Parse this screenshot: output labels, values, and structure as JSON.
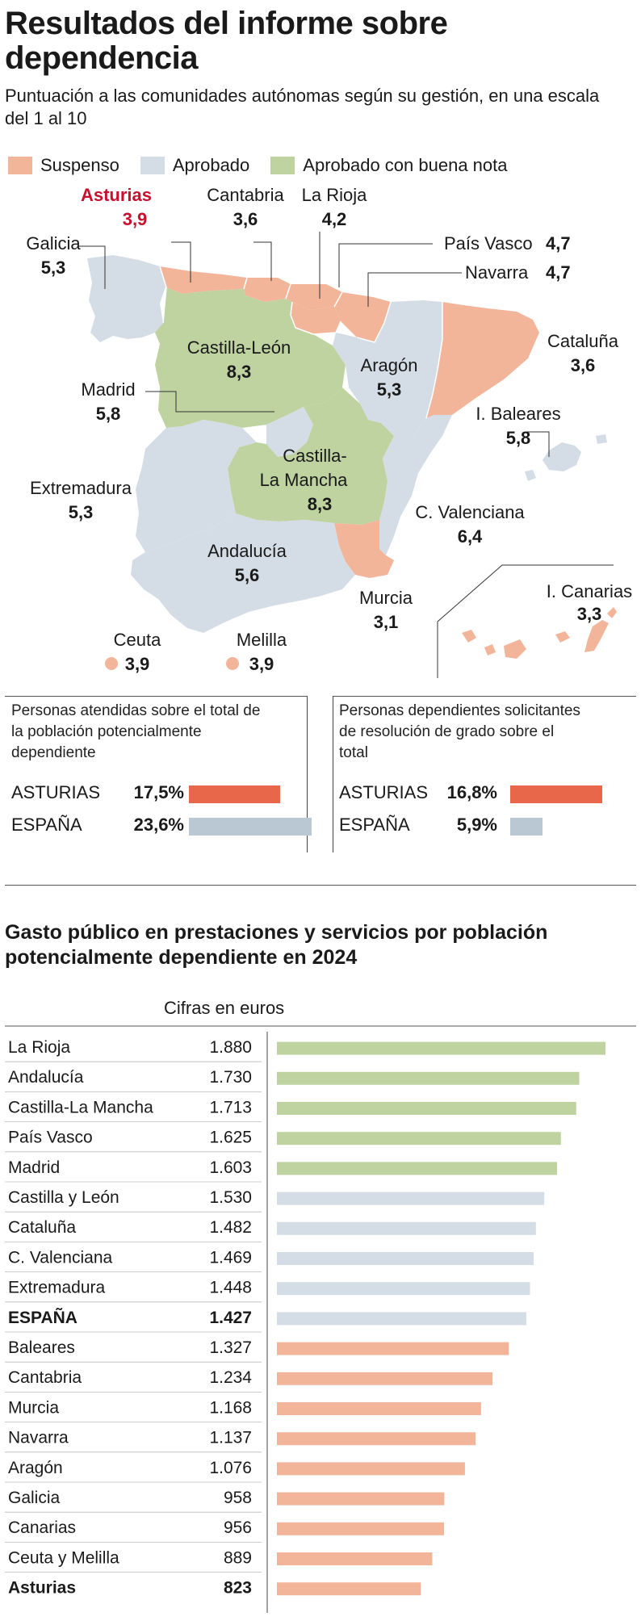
{
  "header": {
    "title": "Resultados del informe sobre dependencia",
    "subtitle": "Puntuación a las comunidades autónomas según su gestión, en una escala del 1 al 10"
  },
  "legend": [
    {
      "label": "Suspenso",
      "color": "#f2b59a"
    },
    {
      "label": "Aprobado",
      "color": "#d4dde5"
    },
    {
      "label": "Aprobado con buena nota",
      "color": "#bfd3a1"
    }
  ],
  "map_labels": [
    {
      "name": "Asturias",
      "score": "3,9",
      "highlight": true
    },
    {
      "name": "Cantabria",
      "score": "3,6"
    },
    {
      "name": "La Rioja",
      "score": "4,2"
    },
    {
      "name": "Galicia",
      "score": "5,3"
    },
    {
      "name": "País Vasco",
      "score": "4,7"
    },
    {
      "name": "Navarra",
      "score": "4,7"
    },
    {
      "name": "Cataluña",
      "score": "3,6"
    },
    {
      "name": "Castilla-León",
      "score": "8,3"
    },
    {
      "name": "Aragón",
      "score": "5,3"
    },
    {
      "name": "Madrid",
      "score": "5,8"
    },
    {
      "name": "I. Baleares",
      "score": "5,8"
    },
    {
      "name": "Castilla-La Mancha",
      "score": "8,3"
    },
    {
      "name": "Extremadura",
      "score": "5,3"
    },
    {
      "name": "C. Valenciana",
      "score": "6,4"
    },
    {
      "name": "Andalucía",
      "score": "5,6"
    },
    {
      "name": "I. Canarias",
      "score": "3,3"
    },
    {
      "name": "Murcia",
      "score": "3,1"
    },
    {
      "name": "Ceuta",
      "score": "3,9"
    },
    {
      "name": "Melilla",
      "score": "3,9"
    }
  ],
  "panels": [
    {
      "title": "Personas atendidas sobre el total de la población potencialmente dependiente",
      "rows": [
        {
          "label": "ASTURIAS",
          "value": "17,5%",
          "amount": 17.5,
          "color": "#e8674a"
        },
        {
          "label": "ESPAÑA",
          "value": "23,6%",
          "amount": 23.6,
          "color": "#b9c8d3"
        }
      ]
    },
    {
      "title": "Personas dependientes solicitantes de resolución de grado sobre el total",
      "rows": [
        {
          "label": "ASTURIAS",
          "value": "16,8%",
          "amount": 16.8,
          "color": "#e8674a"
        },
        {
          "label": "ESPAÑA",
          "value": "5,9%",
          "amount": 5.9,
          "color": "#b9c8d3"
        }
      ]
    }
  ],
  "spending": {
    "title": "Gasto público en prestaciones y servicios por población potencialmente dependiente en 2024",
    "unit": "Cifras en euros"
  },
  "chart_data": {
    "type": "bar",
    "orientation": "horizontal",
    "categories": [
      "La Rioja",
      "Andalucía",
      "Castilla-La Mancha",
      "País Vasco",
      "Madrid",
      "Castilla y León",
      "Cataluña",
      "C. Valenciana",
      "Extremadura",
      "ESPAÑA",
      "Baleares",
      "Cantabria",
      "Murcia",
      "Navarra",
      "Aragón",
      "Galicia",
      "Canarias",
      "Ceuta y Melilla",
      "Asturias"
    ],
    "labels": [
      "1.880",
      "1.730",
      "1.713",
      "1.625",
      "1.603",
      "1.530",
      "1.482",
      "1.469",
      "1.448",
      "1.427",
      "1.327",
      "1.234",
      "1.168",
      "1.137",
      "1.076",
      "958",
      "956",
      "889",
      "823"
    ],
    "values": [
      1880,
      1730,
      1713,
      1625,
      1603,
      1530,
      1482,
      1469,
      1448,
      1427,
      1327,
      1234,
      1168,
      1137,
      1076,
      958,
      956,
      889,
      823
    ],
    "bold": [
      "ESPAÑA",
      "Asturias"
    ],
    "colors": [
      "#bfd3a1",
      "#bfd3a1",
      "#bfd3a1",
      "#bfd3a1",
      "#bfd3a1",
      "#d4dde5",
      "#d4dde5",
      "#d4dde5",
      "#d4dde5",
      "#d4dde5",
      "#f2b59a",
      "#f2b59a",
      "#f2b59a",
      "#f2b59a",
      "#f2b59a",
      "#f2b59a",
      "#f2b59a",
      "#f2b59a",
      "#f2b59a"
    ],
    "xlim": [
      0,
      1880
    ]
  }
}
